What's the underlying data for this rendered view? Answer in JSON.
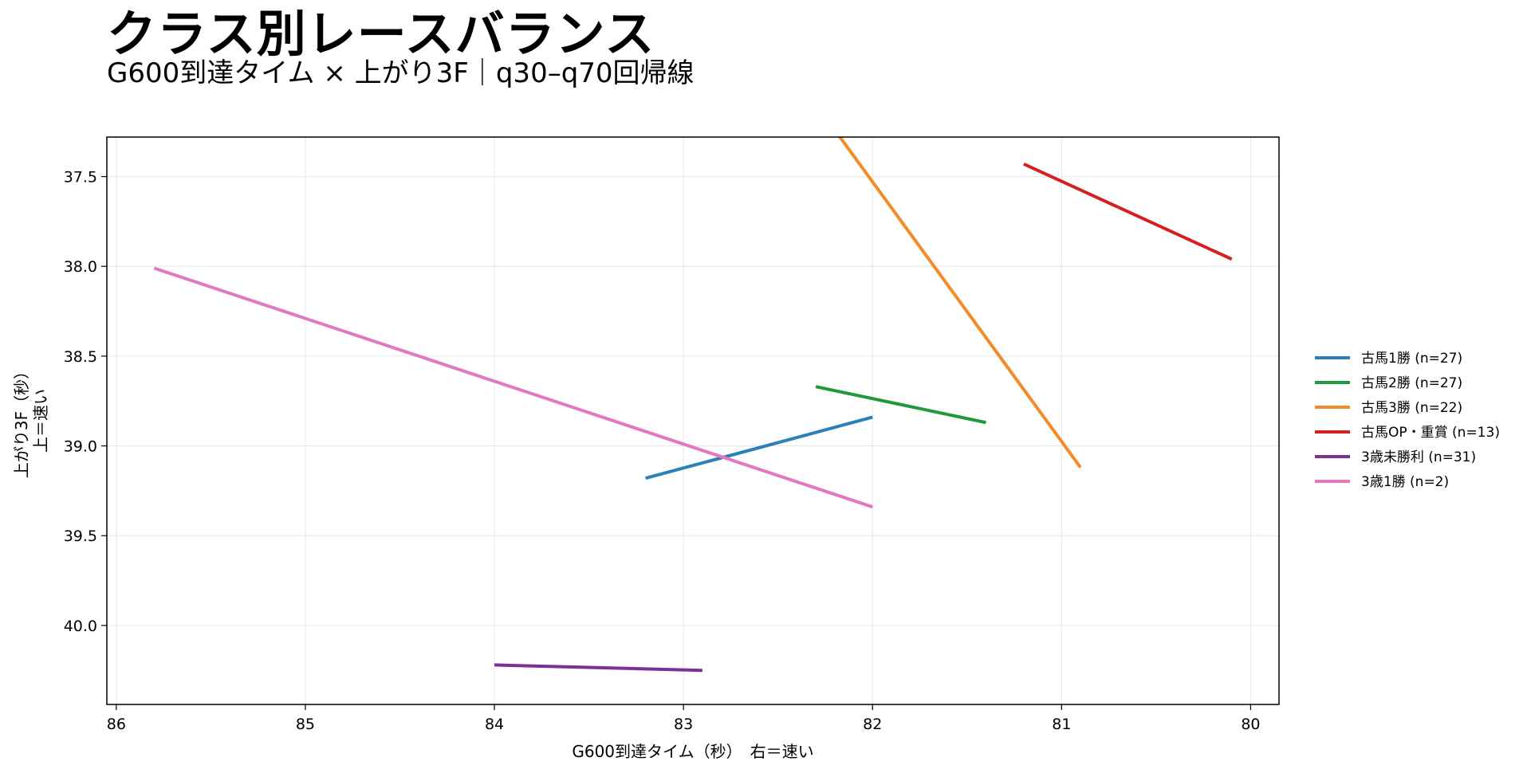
{
  "chart_data": {
    "type": "line",
    "title": "クラス別レースバランス",
    "subtitle": "G600到達タイム × 上がり3F｜q30–q70回帰線",
    "xlabel": "G600到達タイム（秒）　右＝速い",
    "ylabel_line1": "上がり3F（秒）",
    "ylabel_line2": "上＝速い",
    "xlim": [
      86.05,
      79.85
    ],
    "ylim": [
      37.28,
      40.44
    ],
    "x_inverted": true,
    "y_inverted": true,
    "x_ticks": [
      86,
      85,
      84,
      83,
      82,
      81,
      80
    ],
    "x_tick_labels": [
      "86",
      "85",
      "84",
      "83",
      "82",
      "81",
      "80"
    ],
    "y_ticks": [
      37.5,
      38.0,
      38.5,
      39.0,
      39.5,
      40.0
    ],
    "y_tick_labels": [
      "37.5",
      "38.0",
      "38.5",
      "39.0",
      "39.5",
      "40.0"
    ],
    "grid": true,
    "legend_position": "right",
    "series": [
      {
        "name": "古馬1勝 (n=27)",
        "color": "#2d7fb8",
        "x": [
          83.2,
          82.0
        ],
        "y": [
          39.18,
          38.84
        ]
      },
      {
        "name": "古馬2勝 (n=27)",
        "color": "#1e9a3c",
        "x": [
          82.3,
          81.4
        ],
        "y": [
          38.67,
          38.87
        ]
      },
      {
        "name": "古馬3勝 (n=22)",
        "color": "#f28c28",
        "x": [
          82.2,
          80.9
        ],
        "y": [
          37.24,
          39.12
        ]
      },
      {
        "name": "古馬OP・重賞 (n=13)",
        "color": "#d62020",
        "x": [
          81.2,
          80.1
        ],
        "y": [
          37.43,
          37.96
        ]
      },
      {
        "name": "3歳未勝利 (n=31)",
        "color": "#7b3294",
        "x": [
          84.0,
          82.9
        ],
        "y": [
          40.22,
          40.25
        ]
      },
      {
        "name": "3歳1勝 (n=2)",
        "color": "#e377c2",
        "x": [
          85.8,
          82.0
        ],
        "y": [
          38.01,
          39.34
        ]
      }
    ]
  }
}
